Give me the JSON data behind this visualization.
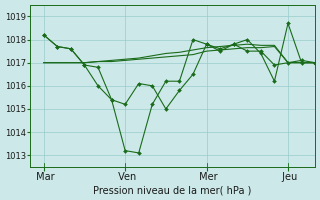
{
  "background_color": "#cce8e8",
  "grid_color": "#99cccc",
  "line_color": "#1a6b1a",
  "marker_color": "#1a6b1a",
  "xlabel_text": "Pression niveau de la mer( hPa )",
  "ylim": [
    1012.5,
    1019.5
  ],
  "yticks": [
    1013,
    1014,
    1015,
    1016,
    1017,
    1018,
    1019
  ],
  "xtick_labels": [
    " Mar",
    " Ven",
    " Mer",
    " Jeu"
  ],
  "xtick_positions": [
    0,
    36,
    72,
    108
  ],
  "xlim": [
    -6,
    120
  ],
  "x_main": [
    0,
    6,
    12,
    18,
    24,
    30,
    36,
    42,
    48,
    54,
    60,
    66,
    72,
    78,
    84,
    90,
    96,
    102,
    108,
    114,
    120
  ],
  "y_zigzag1": [
    1018.2,
    1017.7,
    1017.6,
    1016.9,
    1016.0,
    1015.4,
    1015.2,
    1016.1,
    1016.0,
    1015.0,
    1015.8,
    1016.5,
    1017.8,
    1017.6,
    1017.8,
    1017.5,
    1017.5,
    1016.9,
    1017.0,
    1017.1,
    1017.0
  ],
  "y_zigzag2": [
    1018.2,
    1017.7,
    1017.6,
    1016.9,
    1016.8,
    1015.4,
    1013.2,
    1013.1,
    1015.2,
    1016.2,
    1016.2,
    1018.0,
    1017.8,
    1017.5,
    1017.8,
    1018.0,
    1017.4,
    1016.2,
    1018.7,
    1017.0,
    1017.0
  ],
  "y_smooth1": [
    1017.0,
    1017.0,
    1017.0,
    1017.0,
    1017.05,
    1017.05,
    1017.1,
    1017.15,
    1017.2,
    1017.25,
    1017.3,
    1017.35,
    1017.5,
    1017.55,
    1017.6,
    1017.65,
    1017.65,
    1017.7,
    1017.0,
    1017.0,
    1017.0
  ],
  "y_smooth2": [
    1017.0,
    1017.0,
    1017.0,
    1017.0,
    1017.05,
    1017.1,
    1017.15,
    1017.2,
    1017.3,
    1017.4,
    1017.45,
    1017.55,
    1017.65,
    1017.7,
    1017.75,
    1017.8,
    1017.75,
    1017.75,
    1017.0,
    1017.0,
    1017.0
  ],
  "total_x_points": 21,
  "figsize": [
    3.2,
    2.0
  ],
  "dpi": 100
}
